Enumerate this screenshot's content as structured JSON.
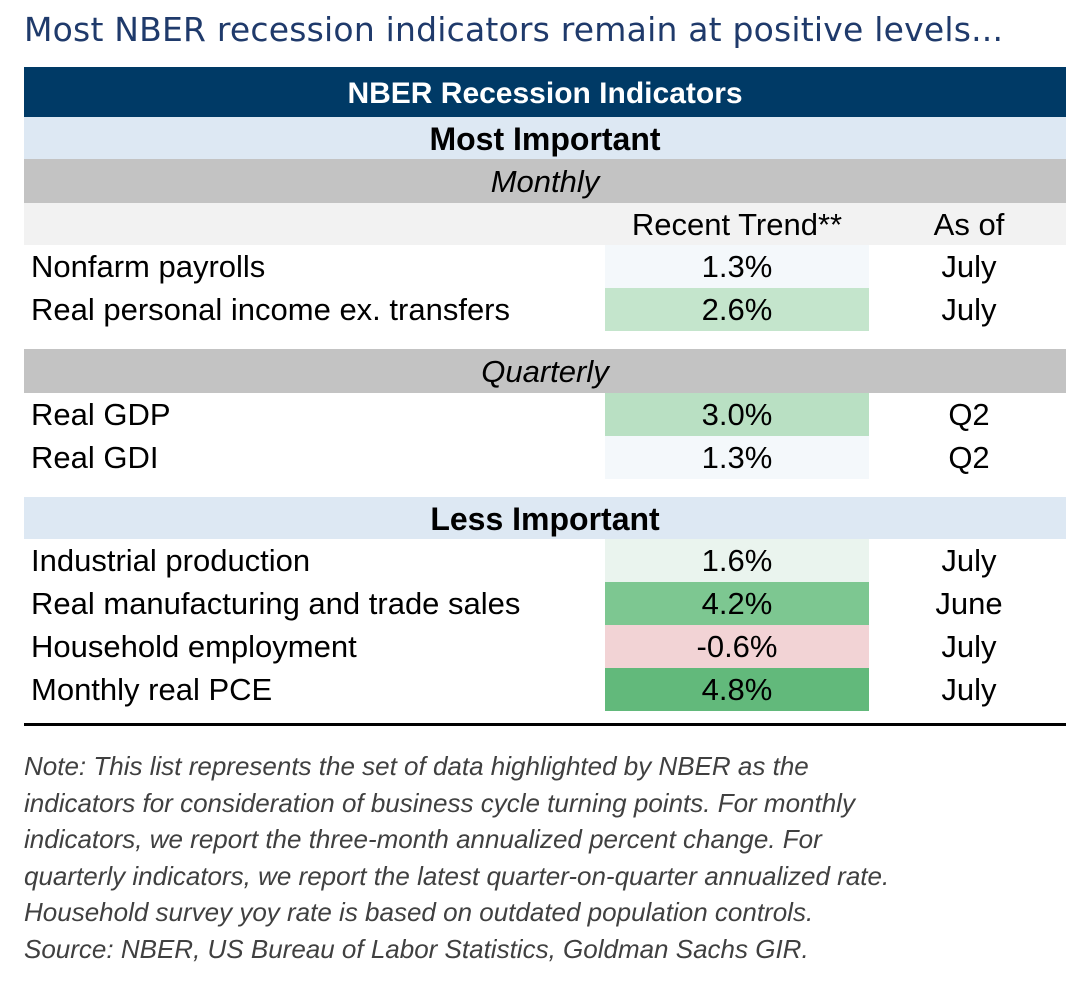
{
  "title": "Most NBER recession indicators remain at positive levels...",
  "chart_data": {
    "type": "table",
    "header": "NBER Recession Indicators",
    "columns": [
      "Recent Trend**",
      "As of"
    ],
    "sections": [
      {
        "name": "Most Important",
        "groups": [
          {
            "name": "Monthly",
            "rows": [
              {
                "indicator": "Nonfarm payrolls",
                "trend": "1.3%",
                "value": 1.3,
                "as_of": "July",
                "color": "#f4f8fb"
              },
              {
                "indicator": "Real personal income ex. transfers",
                "trend": "2.6%",
                "value": 2.6,
                "as_of": "July",
                "color": "#c4e5cc"
              }
            ]
          },
          {
            "name": "Quarterly",
            "rows": [
              {
                "indicator": "Real GDP",
                "trend": "3.0%",
                "value": 3.0,
                "as_of": "Q2",
                "color": "#b9e0c3"
              },
              {
                "indicator": "Real GDI",
                "trend": "1.3%",
                "value": 1.3,
                "as_of": "Q2",
                "color": "#f4f8fb"
              }
            ]
          }
        ]
      },
      {
        "name": "Less Important",
        "groups": [
          {
            "name": "",
            "rows": [
              {
                "indicator": "Industrial production",
                "trend": "1.6%",
                "value": 1.6,
                "as_of": "July",
                "color": "#eaf4ee"
              },
              {
                "indicator": "Real manufacturing and trade sales",
                "trend": "4.2%",
                "value": 4.2,
                "as_of": "June",
                "color": "#7dc791"
              },
              {
                "indicator": "Household employment",
                "trend": "-0.6%",
                "value": -0.6,
                "as_of": "July",
                "color": "#f2d3d5"
              },
              {
                "indicator": "Monthly real PCE",
                "trend": "4.8%",
                "value": 4.8,
                "as_of": "July",
                "color": "#62b97b"
              }
            ]
          }
        ]
      }
    ]
  },
  "note": [
    "Note: This list represents the set of data highlighted by NBER as the",
    "indicators for consideration of business cycle turning points. For monthly",
    "indicators, we report the three-month annualized percent change. For",
    "quarterly indicators, we report the latest quarter-on-quarter annualized rate.",
    "Household survey yoy rate is based on outdated population controls.",
    "Source: NBER, US Bureau of Labor Statistics, Goldman Sachs GIR."
  ]
}
